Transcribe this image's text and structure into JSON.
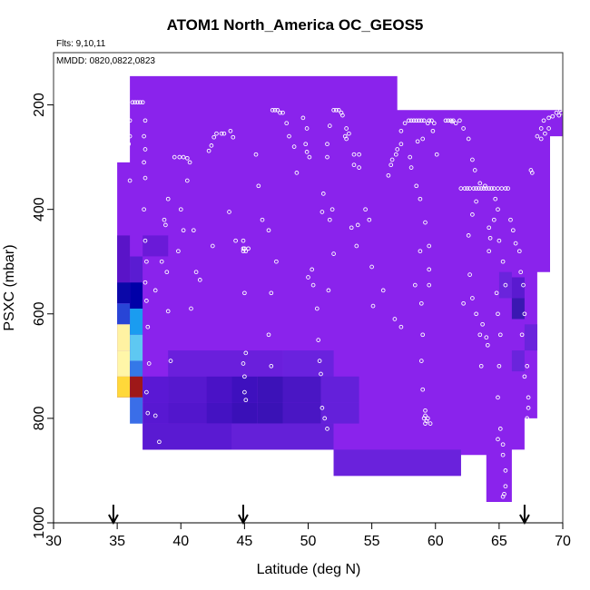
{
  "chart_data": {
    "type": "heatmap",
    "title": "ATOM1 North_America OC_GEOS5",
    "notes": [
      "Flts: 9,10,11",
      "MMDD: 0820,0822,0823"
    ],
    "xlabel": "Latitude (deg N)",
    "ylabel": "PSXC (mbar)",
    "xlim": [
      30,
      70
    ],
    "ylim": [
      1000,
      100
    ],
    "xticks": [
      "30",
      "35",
      "40",
      "45",
      "50",
      "55",
      "60",
      "65",
      "70"
    ],
    "yticks": [
      "200",
      "400",
      "600",
      "800",
      "1000"
    ],
    "background_color": "#8A23EC",
    "field_outline": [
      [
        35,
        310
      ],
      [
        35,
        390
      ],
      [
        35,
        450
      ],
      [
        35,
        670
      ],
      [
        35,
        760
      ],
      [
        37,
        760
      ],
      [
        37,
        860
      ],
      [
        52,
        860
      ],
      [
        52,
        910
      ],
      [
        62,
        910
      ],
      [
        62,
        870
      ],
      [
        64,
        870
      ],
      [
        64,
        960
      ],
      [
        66,
        960
      ],
      [
        66,
        860
      ],
      [
        67,
        860
      ],
      [
        67,
        800
      ],
      [
        68,
        800
      ],
      [
        68,
        520
      ],
      [
        69,
        520
      ],
      [
        69,
        260
      ],
      [
        70,
        260
      ],
      [
        70,
        210
      ],
      [
        57,
        210
      ],
      [
        57,
        145
      ],
      [
        36,
        145
      ],
      [
        36,
        310
      ]
    ],
    "cells": [
      {
        "x0": 35,
        "x1": 36,
        "y0": 450,
        "y1": 540,
        "color": "#5A14C8"
      },
      {
        "x0": 35,
        "x1": 36,
        "y0": 540,
        "y1": 580,
        "color": "#0A08A8"
      },
      {
        "x0": 35,
        "x1": 36,
        "y0": 580,
        "y1": 620,
        "color": "#2845D6"
      },
      {
        "x0": 35,
        "x1": 36,
        "y0": 620,
        "y1": 670,
        "color": "#FFF2A2"
      },
      {
        "x0": 35,
        "x1": 36,
        "y0": 670,
        "y1": 720,
        "color": "#FFF6A8"
      },
      {
        "x0": 35,
        "x1": 36,
        "y0": 720,
        "y1": 760,
        "color": "#FFD83A"
      },
      {
        "x0": 36,
        "x1": 37,
        "y0": 490,
        "y1": 540,
        "color": "#5A1CD2"
      },
      {
        "x0": 36,
        "x1": 37,
        "y0": 540,
        "y1": 590,
        "color": "#0000A8"
      },
      {
        "x0": 36,
        "x1": 37,
        "y0": 590,
        "y1": 640,
        "color": "#1A9CF0"
      },
      {
        "x0": 36,
        "x1": 37,
        "y0": 640,
        "y1": 690,
        "color": "#5EC8F2"
      },
      {
        "x0": 36,
        "x1": 37,
        "y0": 690,
        "y1": 720,
        "color": "#3478E8"
      },
      {
        "x0": 36,
        "x1": 37,
        "y0": 720,
        "y1": 760,
        "color": "#9E1818"
      },
      {
        "x0": 36,
        "x1": 37,
        "y0": 760,
        "y1": 810,
        "color": "#3A6EE8"
      },
      {
        "x0": 37,
        "x1": 39,
        "y0": 450,
        "y1": 490,
        "color": "#6A1AD8"
      },
      {
        "x0": 39,
        "x1": 48,
        "y0": 670,
        "y1": 720,
        "color": "#6A1FDC"
      },
      {
        "x0": 48,
        "x1": 52,
        "y0": 670,
        "y1": 720,
        "color": "#6A22DE"
      },
      {
        "x0": 37,
        "x1": 39,
        "y0": 720,
        "y1": 770,
        "color": "#5A18D4"
      },
      {
        "x0": 39,
        "x1": 42,
        "y0": 720,
        "y1": 770,
        "color": "#5618CF"
      },
      {
        "x0": 42,
        "x1": 44,
        "y0": 720,
        "y1": 770,
        "color": "#4A12C6"
      },
      {
        "x0": 44,
        "x1": 46,
        "y0": 720,
        "y1": 770,
        "color": "#3E10BE"
      },
      {
        "x0": 46,
        "x1": 48,
        "y0": 720,
        "y1": 770,
        "color": "#3C12B8"
      },
      {
        "x0": 48,
        "x1": 51,
        "y0": 720,
        "y1": 770,
        "color": "#4A16C4"
      },
      {
        "x0": 51,
        "x1": 54,
        "y0": 720,
        "y1": 770,
        "color": "#6420DA"
      },
      {
        "x0": 37,
        "x1": 39,
        "y0": 770,
        "y1": 810,
        "color": "#5818D2"
      },
      {
        "x0": 39,
        "x1": 42,
        "y0": 770,
        "y1": 810,
        "color": "#5216CC"
      },
      {
        "x0": 42,
        "x1": 44,
        "y0": 770,
        "y1": 810,
        "color": "#4412C2"
      },
      {
        "x0": 44,
        "x1": 46,
        "y0": 770,
        "y1": 810,
        "color": "#3A10B8"
      },
      {
        "x0": 46,
        "x1": 48,
        "y0": 770,
        "y1": 810,
        "color": "#3A12B6"
      },
      {
        "x0": 48,
        "x1": 51,
        "y0": 770,
        "y1": 810,
        "color": "#4A16C4"
      },
      {
        "x0": 51,
        "x1": 54,
        "y0": 770,
        "y1": 810,
        "color": "#6420DA"
      },
      {
        "x0": 37,
        "x1": 44,
        "y0": 810,
        "y1": 860,
        "color": "#5A1AD2"
      },
      {
        "x0": 44,
        "x1": 52,
        "y0": 810,
        "y1": 860,
        "color": "#6420D8"
      },
      {
        "x0": 52,
        "x1": 62,
        "y0": 860,
        "y1": 910,
        "color": "#6A22DC"
      },
      {
        "x0": 65,
        "x1": 66,
        "y0": 520,
        "y1": 570,
        "color": "#6A24DC"
      },
      {
        "x0": 66,
        "x1": 67,
        "y0": 530,
        "y1": 570,
        "color": "#5A1AD0"
      },
      {
        "x0": 66,
        "x1": 67,
        "y0": 570,
        "y1": 610,
        "color": "#3A18B2"
      },
      {
        "x0": 66,
        "x1": 67,
        "y0": 670,
        "y1": 710,
        "color": "#6A24DC"
      },
      {
        "x0": 67,
        "x1": 68,
        "y0": 620,
        "y1": 670,
        "color": "#6A24DC"
      }
    ],
    "flight_track": [
      [
        36.2,
        195
      ],
      [
        36.4,
        195
      ],
      [
        36.6,
        195
      ],
      [
        36.8,
        195
      ],
      [
        37.0,
        195
      ],
      [
        36.0,
        230
      ],
      [
        35.8,
        255
      ],
      [
        36.0,
        260
      ],
      [
        35.9,
        275
      ],
      [
        36.0,
        345
      ],
      [
        37.2,
        230
      ],
      [
        37.1,
        260
      ],
      [
        37.2,
        285
      ],
      [
        37.1,
        310
      ],
      [
        37.2,
        340
      ],
      [
        37.1,
        400
      ],
      [
        37.2,
        460
      ],
      [
        37.3,
        500
      ],
      [
        37.2,
        540
      ],
      [
        37.3,
        575
      ],
      [
        37.4,
        625
      ],
      [
        37.5,
        695
      ],
      [
        37.3,
        750
      ],
      [
        37.4,
        790
      ],
      [
        38.0,
        795
      ],
      [
        38.3,
        845
      ],
      [
        39.0,
        380
      ],
      [
        38.7,
        420
      ],
      [
        38.8,
        430
      ],
      [
        38.5,
        500
      ],
      [
        38.0,
        555
      ],
      [
        38.9,
        520
      ],
      [
        39.0,
        595
      ],
      [
        39.2,
        690
      ],
      [
        40.8,
        590
      ],
      [
        39.5,
        300
      ],
      [
        39.9,
        300
      ],
      [
        40.2,
        300
      ],
      [
        40.5,
        302
      ],
      [
        40.7,
        310
      ],
      [
        40.5,
        345
      ],
      [
        40.0,
        400
      ],
      [
        39.8,
        480
      ],
      [
        40.2,
        440
      ],
      [
        41.0,
        440
      ],
      [
        41.2,
        520
      ],
      [
        41.5,
        535
      ],
      [
        42.5,
        470
      ],
      [
        42.2,
        288
      ],
      [
        42.4,
        278
      ],
      [
        42.6,
        262
      ],
      [
        42.8,
        255
      ],
      [
        43.2,
        255
      ],
      [
        43.4,
        255
      ],
      [
        43.9,
        250
      ],
      [
        44.1,
        262
      ],
      [
        43.8,
        405
      ],
      [
        44.3,
        460
      ],
      [
        44.9,
        475
      ],
      [
        44.9,
        480
      ],
      [
        45.1,
        480
      ],
      [
        45.3,
        475
      ],
      [
        44.9,
        460
      ],
      [
        45.0,
        475
      ],
      [
        45.0,
        560
      ],
      [
        45.1,
        675
      ],
      [
        44.9,
        695
      ],
      [
        45.0,
        720
      ],
      [
        45.0,
        750
      ],
      [
        45.1,
        765
      ],
      [
        45.9,
        295
      ],
      [
        46.1,
        355
      ],
      [
        46.4,
        420
      ],
      [
        46.9,
        440
      ],
      [
        47.5,
        500
      ],
      [
        47.1,
        560
      ],
      [
        46.9,
        640
      ],
      [
        47.1,
        700
      ],
      [
        47.2,
        210
      ],
      [
        47.4,
        210
      ],
      [
        47.6,
        210
      ],
      [
        47.8,
        215
      ],
      [
        48.0,
        215
      ],
      [
        48.3,
        235
      ],
      [
        48.5,
        260
      ],
      [
        48.9,
        280
      ],
      [
        49.1,
        330
      ],
      [
        49.6,
        225
      ],
      [
        49.9,
        245
      ],
      [
        49.8,
        275
      ],
      [
        49.9,
        290
      ],
      [
        50.1,
        300
      ],
      [
        50.4,
        545
      ],
      [
        50.0,
        530
      ],
      [
        50.3,
        515
      ],
      [
        50.7,
        590
      ],
      [
        50.8,
        650
      ],
      [
        50.9,
        690
      ],
      [
        51.0,
        715
      ],
      [
        51.1,
        780
      ],
      [
        51.3,
        800
      ],
      [
        51.5,
        820
      ],
      [
        51.6,
        555
      ],
      [
        52.0,
        485
      ],
      [
        51.1,
        405
      ],
      [
        51.7,
        420
      ],
      [
        51.9,
        400
      ],
      [
        51.2,
        370
      ],
      [
        51.5,
        300
      ],
      [
        51.5,
        275
      ],
      [
        51.7,
        240
      ],
      [
        52.0,
        210
      ],
      [
        52.2,
        210
      ],
      [
        52.4,
        210
      ],
      [
        52.6,
        215
      ],
      [
        52.7,
        220
      ],
      [
        53.0,
        245
      ],
      [
        53.2,
        255
      ],
      [
        52.9,
        260
      ],
      [
        53.0,
        265
      ],
      [
        53.6,
        315
      ],
      [
        54.0,
        320
      ],
      [
        53.6,
        295
      ],
      [
        54.0,
        295
      ],
      [
        54.5,
        400
      ],
      [
        54.8,
        420
      ],
      [
        53.9,
        430
      ],
      [
        53.4,
        435
      ],
      [
        53.8,
        470
      ],
      [
        55.0,
        510
      ],
      [
        55.1,
        585
      ],
      [
        55.9,
        555
      ],
      [
        56.8,
        610
      ],
      [
        57.3,
        625
      ],
      [
        58.4,
        545
      ],
      [
        58.9,
        580
      ],
      [
        59.0,
        640
      ],
      [
        58.9,
        690
      ],
      [
        59.0,
        745
      ],
      [
        59.2,
        785
      ],
      [
        59.4,
        800
      ],
      [
        59.6,
        810
      ],
      [
        59.2,
        795
      ],
      [
        59.1,
        800
      ],
      [
        59.3,
        805
      ],
      [
        59.2,
        810
      ],
      [
        56.3,
        335
      ],
      [
        56.5,
        315
      ],
      [
        56.6,
        305
      ],
      [
        56.9,
        295
      ],
      [
        57.0,
        285
      ],
      [
        57.3,
        275
      ],
      [
        57.3,
        250
      ],
      [
        57.6,
        235
      ],
      [
        57.9,
        230
      ],
      [
        58.1,
        230
      ],
      [
        58.3,
        230
      ],
      [
        58.5,
        230
      ],
      [
        58.7,
        230
      ],
      [
        58.9,
        230
      ],
      [
        59.1,
        230
      ],
      [
        59.4,
        235
      ],
      [
        59.7,
        230
      ],
      [
        59.5,
        230
      ],
      [
        59.9,
        235
      ],
      [
        59.8,
        250
      ],
      [
        59.0,
        265
      ],
      [
        58.6,
        270
      ],
      [
        58.0,
        300
      ],
      [
        58.1,
        320
      ],
      [
        58.5,
        355
      ],
      [
        58.8,
        380
      ],
      [
        59.2,
        425
      ],
      [
        59.5,
        470
      ],
      [
        58.8,
        480
      ],
      [
        59.5,
        515
      ],
      [
        59.5,
        545
      ],
      [
        60.1,
        295
      ],
      [
        60.8,
        230
      ],
      [
        61.0,
        230
      ],
      [
        61.2,
        230
      ],
      [
        61.4,
        230
      ],
      [
        61.3,
        232
      ],
      [
        61.6,
        235
      ],
      [
        61.9,
        230
      ],
      [
        62.2,
        245
      ],
      [
        62.6,
        265
      ],
      [
        62.9,
        305
      ],
      [
        63.1,
        325
      ],
      [
        63.5,
        350
      ],
      [
        63.9,
        355
      ],
      [
        63.2,
        385
      ],
      [
        62.9,
        410
      ],
      [
        62.6,
        450
      ],
      [
        62.7,
        525
      ],
      [
        62.9,
        570
      ],
      [
        63.2,
        600
      ],
      [
        63.7,
        620
      ],
      [
        63.5,
        640
      ],
      [
        64.0,
        645
      ],
      [
        64.1,
        660
      ],
      [
        63.6,
        700
      ],
      [
        62.2,
        580
      ],
      [
        62.0,
        360
      ],
      [
        62.3,
        360
      ],
      [
        62.5,
        360
      ],
      [
        62.7,
        360
      ],
      [
        63.0,
        360
      ],
      [
        63.2,
        360
      ],
      [
        63.4,
        360
      ],
      [
        63.6,
        360
      ],
      [
        63.8,
        360
      ],
      [
        64.0,
        360
      ],
      [
        64.2,
        360
      ],
      [
        64.4,
        360
      ],
      [
        64.6,
        360
      ],
      [
        64.9,
        360
      ],
      [
        65.2,
        360
      ],
      [
        65.5,
        360
      ],
      [
        65.7,
        360
      ],
      [
        64.7,
        380
      ],
      [
        64.9,
        400
      ],
      [
        64.6,
        420
      ],
      [
        64.2,
        435
      ],
      [
        64.3,
        455
      ],
      [
        64.2,
        480
      ],
      [
        65.0,
        460
      ],
      [
        65.3,
        500
      ],
      [
        65.5,
        545
      ],
      [
        64.8,
        560
      ],
      [
        64.9,
        600
      ],
      [
        65.1,
        640
      ],
      [
        65.0,
        700
      ],
      [
        64.9,
        760
      ],
      [
        65.1,
        820
      ],
      [
        64.9,
        840
      ],
      [
        65.3,
        850
      ],
      [
        65.3,
        870
      ],
      [
        65.5,
        900
      ],
      [
        65.5,
        930
      ],
      [
        65.4,
        945
      ],
      [
        65.3,
        950
      ],
      [
        65.9,
        420
      ],
      [
        66.1,
        440
      ],
      [
        66.3,
        465
      ],
      [
        66.6,
        480
      ],
      [
        66.7,
        520
      ],
      [
        66.9,
        545
      ],
      [
        67.0,
        600
      ],
      [
        66.8,
        640
      ],
      [
        67.2,
        700
      ],
      [
        67.0,
        720
      ],
      [
        67.3,
        760
      ],
      [
        67.3,
        780
      ],
      [
        67.2,
        800
      ],
      [
        67.5,
        325
      ],
      [
        67.6,
        330
      ],
      [
        68.0,
        260
      ],
      [
        68.3,
        245
      ],
      [
        68.5,
        230
      ],
      [
        68.9,
        225
      ],
      [
        69.2,
        222
      ],
      [
        69.5,
        215
      ],
      [
        69.9,
        215
      ],
      [
        69.7,
        220
      ],
      [
        68.9,
        245
      ],
      [
        68.6,
        255
      ],
      [
        68.3,
        265
      ],
      [
        69.8,
        210
      ]
    ],
    "flight_markers": [
      34.7,
      44.9,
      67.0
    ]
  }
}
